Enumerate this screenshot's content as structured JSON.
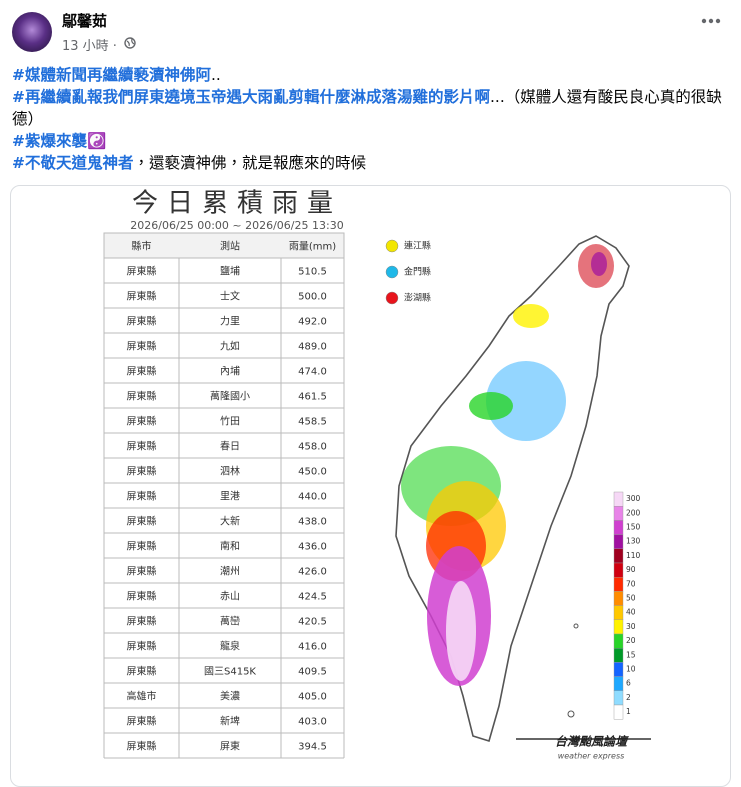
{
  "post": {
    "author": "鄔馨茹",
    "time": "13 小時 ·",
    "paragraphs": [
      {
        "hashtag": "#媒體新聞再繼續褻瀆神佛阿",
        "text": ".."
      },
      {
        "hashtag": "#再繼續亂報我們屏東遶境玉帝遇大雨亂剪輯什麼淋成落湯雞的影片啊",
        "text": "...（媒體人還有酸民良心真的很缺德）"
      },
      {
        "hashtag": "#紫爆來襲",
        "text": "☯️"
      },
      {
        "hashtag": "#不敬天道鬼神者",
        "text": "，還褻瀆神佛，就是報應來的時候"
      }
    ]
  },
  "image": {
    "title": "今日累積雨量",
    "period": "2026/06/25 00:00 ~ 2026/06/25 13:30",
    "table": {
      "header": [
        "縣市",
        "測站",
        "雨量(mm)"
      ],
      "rows": [
        [
          "屏東縣",
          "鹽埔",
          "510.5"
        ],
        [
          "屏東縣",
          "士文",
          "500.0"
        ],
        [
          "屏東縣",
          "力里",
          "492.0"
        ],
        [
          "屏東縣",
          "九如",
          "489.0"
        ],
        [
          "屏東縣",
          "內埔",
          "474.0"
        ],
        [
          "屏東縣",
          "萬隆國小",
          "461.5"
        ],
        [
          "屏東縣",
          "竹田",
          "458.5"
        ],
        [
          "屏東縣",
          "春日",
          "458.0"
        ],
        [
          "屏東縣",
          "泗林",
          "450.0"
        ],
        [
          "屏東縣",
          "里港",
          "440.0"
        ],
        [
          "屏東縣",
          "大新",
          "438.0"
        ],
        [
          "屏東縣",
          "南和",
          "436.0"
        ],
        [
          "屏東縣",
          "潮州",
          "426.0"
        ],
        [
          "屏東縣",
          "赤山",
          "424.5"
        ],
        [
          "屏東縣",
          "萬巒",
          "420.5"
        ],
        [
          "屏東縣",
          "龍泉",
          "416.0"
        ],
        [
          "屏東縣",
          "國三S415K",
          "409.5"
        ],
        [
          "高雄市",
          "美濃",
          "405.0"
        ],
        [
          "屏東縣",
          "新埤",
          "403.0"
        ],
        [
          "屏東縣",
          "屏東",
          "394.5"
        ]
      ]
    },
    "islands": [
      {
        "name": "連江縣",
        "color": "#f2e600"
      },
      {
        "name": "金門縣",
        "color": "#1fb8e8"
      },
      {
        "name": "澎湖縣",
        "color": "#e8141c"
      }
    ],
    "scale": [
      {
        "label": 300,
        "color": "#f6d8f6"
      },
      {
        "label": 200,
        "color": "#e884e8"
      },
      {
        "label": 150,
        "color": "#d040d0"
      },
      {
        "label": 130,
        "color": "#a010a0"
      },
      {
        "label": 110,
        "color": "#a00020"
      },
      {
        "label": 90,
        "color": "#d00010"
      },
      {
        "label": 70,
        "color": "#ff2a00"
      },
      {
        "label": 50,
        "color": "#ff8c00"
      },
      {
        "label": 40,
        "color": "#ffc800"
      },
      {
        "label": 30,
        "color": "#fff200"
      },
      {
        "label": 20,
        "color": "#28d428"
      },
      {
        "label": 15,
        "color": "#009a28"
      },
      {
        "label": 10,
        "color": "#1464ff"
      },
      {
        "label": 6,
        "color": "#1ea8ff"
      },
      {
        "label": 2,
        "color": "#8fdcff"
      },
      {
        "label": 1,
        "color": "#ffffff"
      }
    ],
    "watermark": "台灣颱風論壇",
    "watermark_sub": "weather express"
  }
}
